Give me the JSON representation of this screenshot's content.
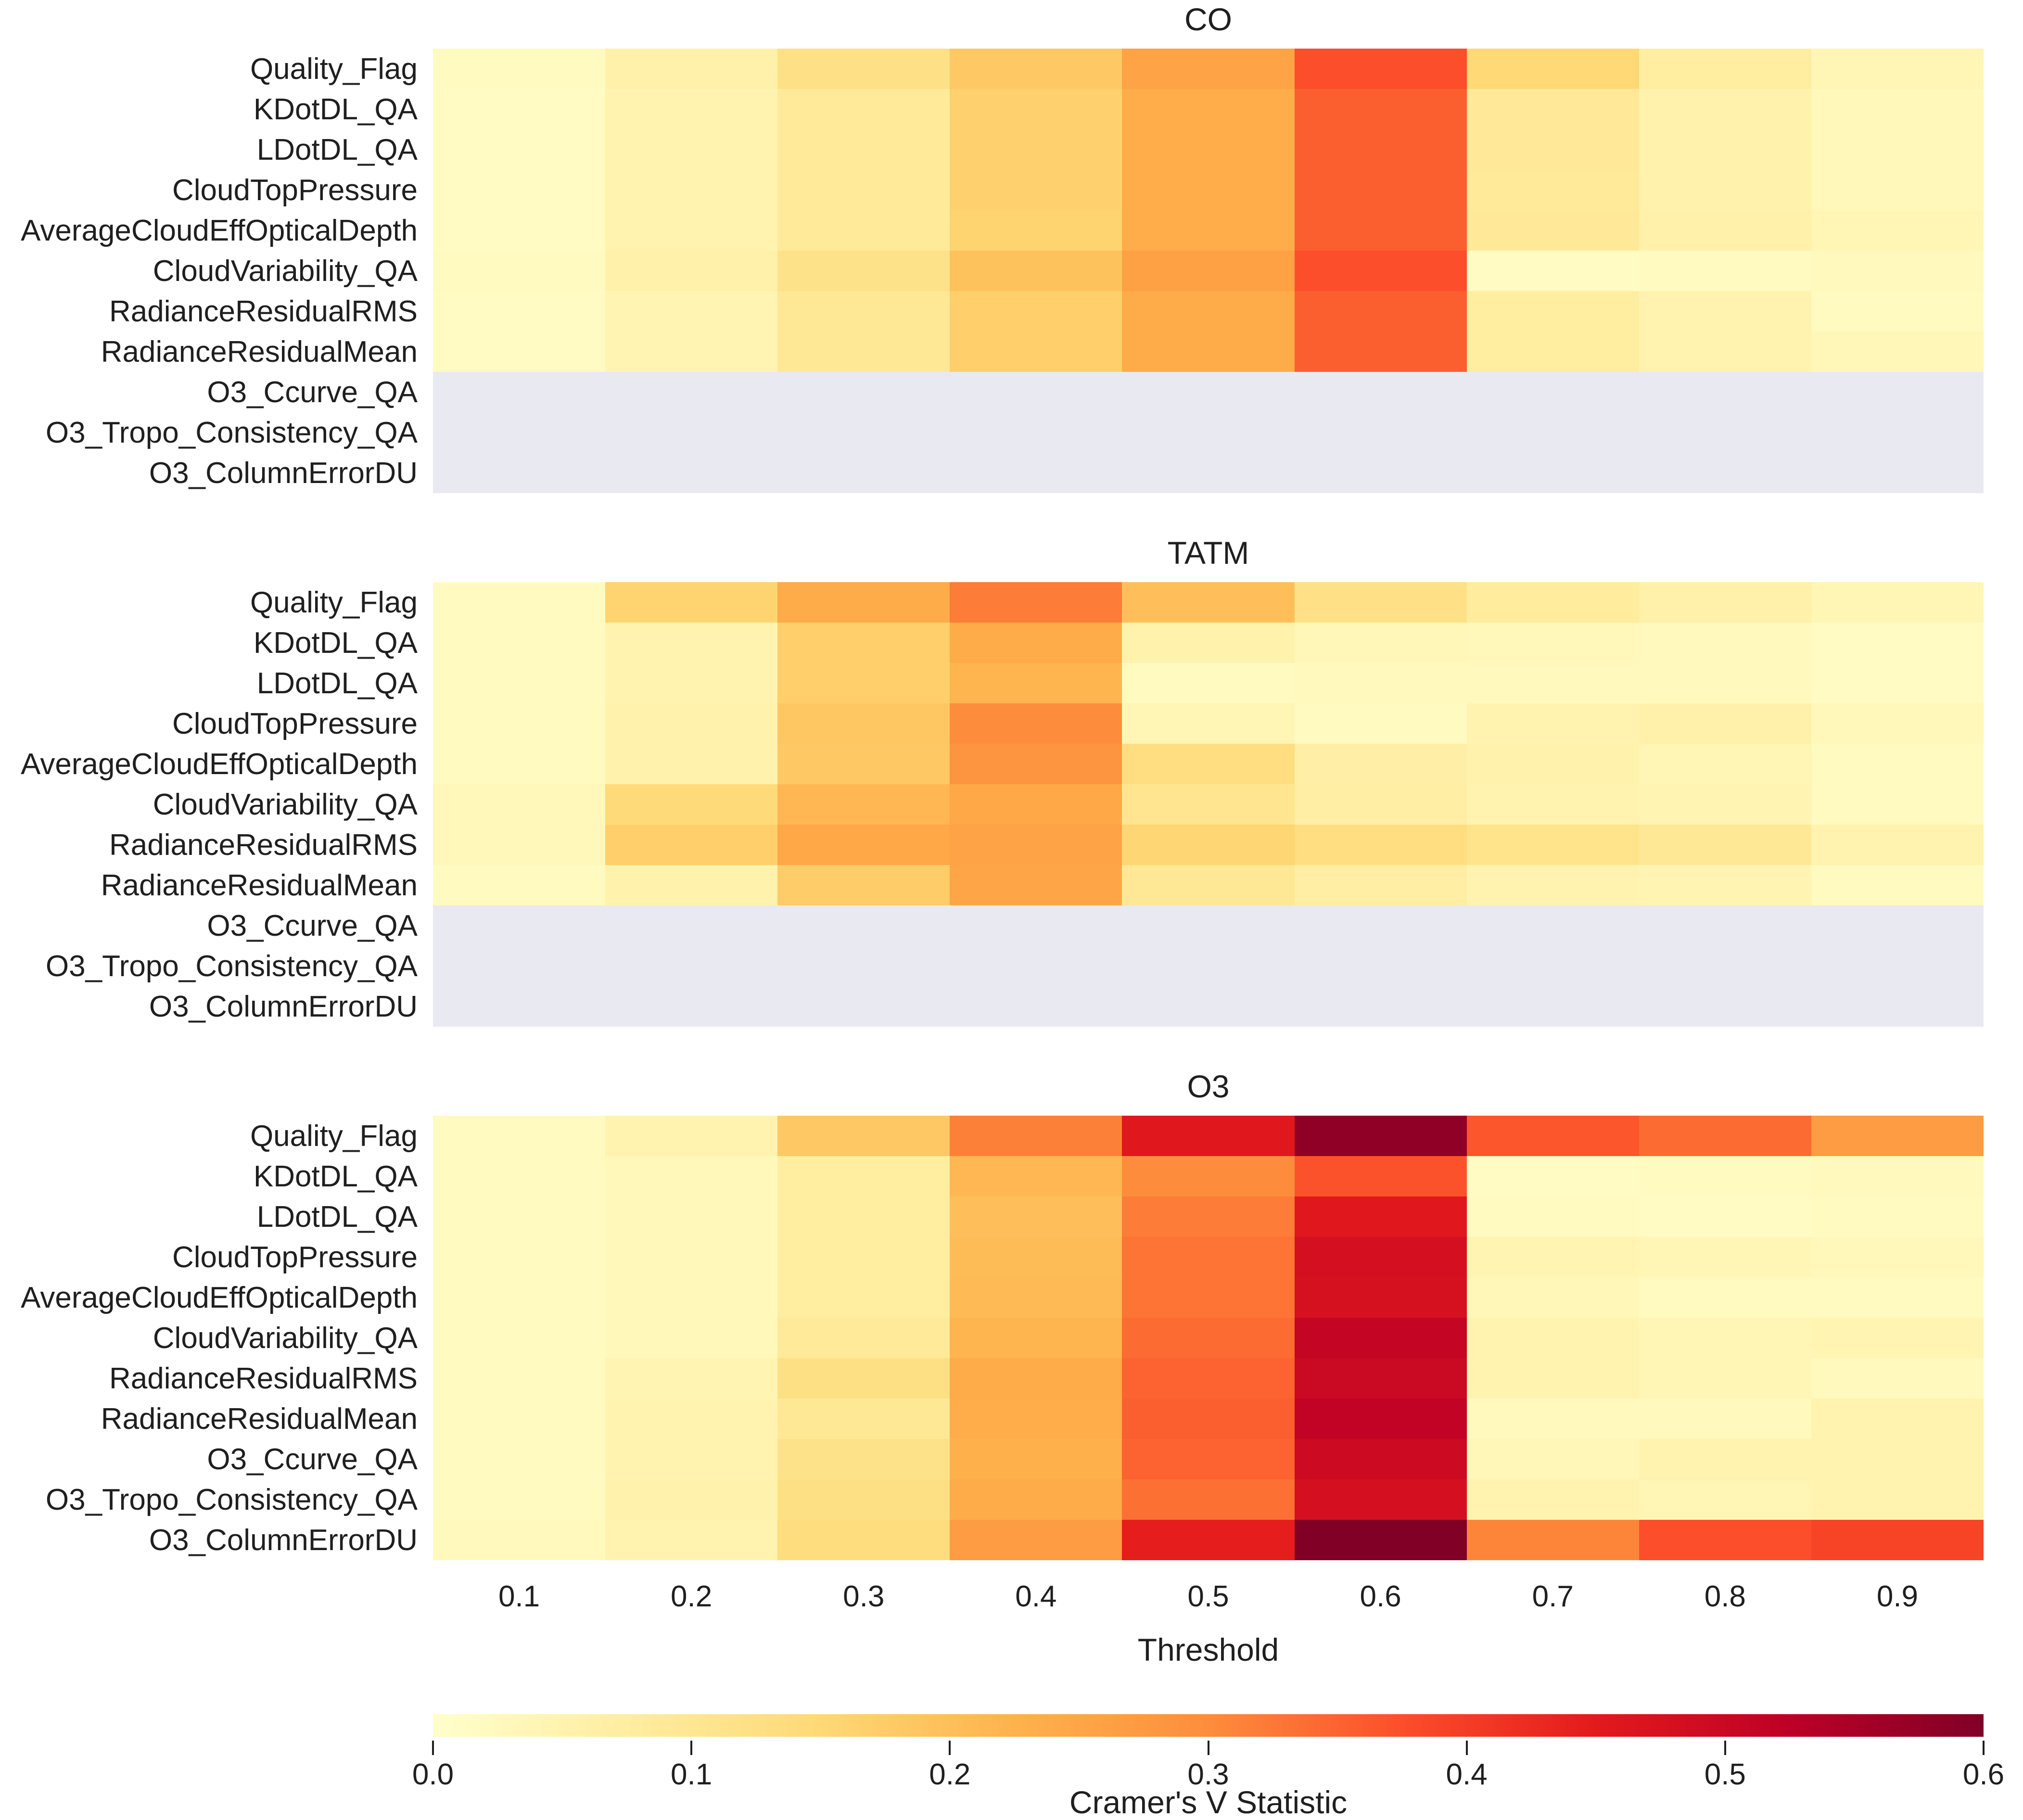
{
  "figure": {
    "background": "#ffffff",
    "text_color": "#1f1f1f",
    "nan_color": "#e9e9f2"
  },
  "x_axis": {
    "label": "Threshold",
    "tick_labels": [
      "0.1",
      "0.2",
      "0.3",
      "0.4",
      "0.5",
      "0.6",
      "0.7",
      "0.8",
      "0.9"
    ]
  },
  "colorbar": {
    "label": "Cramer's V Statistic",
    "min": 0.0,
    "max": 0.6,
    "tick_labels": [
      "0.0",
      "0.1",
      "0.2",
      "0.3",
      "0.4",
      "0.5",
      "0.6"
    ],
    "colormap": "YlOrRd",
    "stops": [
      "#ffffcc",
      "#ffeda0",
      "#fed976",
      "#feb24c",
      "#fd8d3c",
      "#fc4e2a",
      "#e31a1c",
      "#bd0026",
      "#800026"
    ]
  },
  "chart_data": [
    {
      "type": "heatmap",
      "title": "CO",
      "xlabel": "",
      "show_x_tick_labels": false,
      "columns": [
        0.1,
        0.2,
        0.3,
        0.4,
        0.5,
        0.6,
        0.7,
        0.8,
        0.9
      ],
      "rows": [
        "Quality_Flag",
        "KDotDL_QA",
        "LDotDL_QA",
        "CloudTopPressure",
        "AverageCloudEffOpticalDepth",
        "CloudVariability_QA",
        "RadianceResidualRMS",
        "RadianceResidualMean",
        "O3_Ccurve_QA",
        "O3_Tropo_Consistency_QA",
        "O3_ColumnErrorDU"
      ],
      "values": [
        [
          0.02,
          0.06,
          0.12,
          0.18,
          0.255,
          0.375,
          0.15,
          0.075,
          0.04
        ],
        [
          0.015,
          0.05,
          0.085,
          0.165,
          0.235,
          0.355,
          0.09,
          0.055,
          0.03
        ],
        [
          0.015,
          0.05,
          0.085,
          0.165,
          0.235,
          0.355,
          0.09,
          0.055,
          0.03
        ],
        [
          0.015,
          0.05,
          0.085,
          0.165,
          0.235,
          0.355,
          0.085,
          0.055,
          0.03
        ],
        [
          0.015,
          0.05,
          0.085,
          0.16,
          0.235,
          0.355,
          0.09,
          0.06,
          0.04
        ],
        [
          0.02,
          0.06,
          0.115,
          0.195,
          0.26,
          0.375,
          0.015,
          0.02,
          0.025
        ],
        [
          0.015,
          0.045,
          0.095,
          0.17,
          0.24,
          0.355,
          0.075,
          0.05,
          0.02
        ],
        [
          0.015,
          0.045,
          0.095,
          0.17,
          0.24,
          0.355,
          0.075,
          0.05,
          0.035
        ],
        [
          null,
          null,
          null,
          null,
          null,
          null,
          null,
          null,
          null
        ],
        [
          null,
          null,
          null,
          null,
          null,
          null,
          null,
          null,
          null
        ],
        [
          null,
          null,
          null,
          null,
          null,
          null,
          null,
          null,
          null
        ]
      ]
    },
    {
      "type": "heatmap",
      "title": "TATM",
      "xlabel": "",
      "show_x_tick_labels": false,
      "columns": [
        0.1,
        0.2,
        0.3,
        0.4,
        0.5,
        0.6,
        0.7,
        0.8,
        0.9
      ],
      "rows": [
        "Quality_Flag",
        "KDotDL_QA",
        "LDotDL_QA",
        "CloudTopPressure",
        "AverageCloudEffOpticalDepth",
        "CloudVariability_QA",
        "RadianceResidualRMS",
        "RadianceResidualMean",
        "O3_Ccurve_QA",
        "O3_Tropo_Consistency_QA",
        "O3_ColumnErrorDU"
      ],
      "values": [
        [
          0.02,
          0.16,
          0.24,
          0.32,
          0.2,
          0.12,
          0.08,
          0.06,
          0.04
        ],
        [
          0.02,
          0.05,
          0.17,
          0.24,
          0.055,
          0.035,
          0.03,
          0.025,
          0.015
        ],
        [
          0.02,
          0.05,
          0.17,
          0.22,
          0.02,
          0.025,
          0.025,
          0.025,
          0.015
        ],
        [
          0.02,
          0.055,
          0.185,
          0.3,
          0.04,
          0.02,
          0.05,
          0.06,
          0.03
        ],
        [
          0.02,
          0.055,
          0.18,
          0.285,
          0.13,
          0.065,
          0.055,
          0.04,
          0.02
        ],
        [
          0.03,
          0.145,
          0.215,
          0.245,
          0.105,
          0.07,
          0.05,
          0.045,
          0.02
        ],
        [
          0.03,
          0.17,
          0.245,
          0.255,
          0.155,
          0.13,
          0.11,
          0.095,
          0.05
        ],
        [
          0.02,
          0.055,
          0.175,
          0.25,
          0.095,
          0.07,
          0.05,
          0.045,
          0.02
        ],
        [
          null,
          null,
          null,
          null,
          null,
          null,
          null,
          null,
          null
        ],
        [
          null,
          null,
          null,
          null,
          null,
          null,
          null,
          null,
          null
        ],
        [
          null,
          null,
          null,
          null,
          null,
          null,
          null,
          null,
          null
        ]
      ]
    },
    {
      "type": "heatmap",
      "title": "O3",
      "xlabel": "Threshold",
      "show_x_tick_labels": true,
      "columns": [
        0.1,
        0.2,
        0.3,
        0.4,
        0.5,
        0.6,
        0.7,
        0.8,
        0.9
      ],
      "rows": [
        "Quality_Flag",
        "KDotDL_QA",
        "LDotDL_QA",
        "CloudTopPressure",
        "AverageCloudEffOpticalDepth",
        "CloudVariability_QA",
        "RadianceResidualRMS",
        "RadianceResidualMean",
        "O3_Ccurve_QA",
        "O3_Tropo_Consistency_QA",
        "O3_ColumnErrorDU"
      ],
      "values": [
        [
          0.02,
          0.05,
          0.18,
          0.315,
          0.455,
          0.58,
          0.365,
          0.34,
          0.27
        ],
        [
          0.02,
          0.03,
          0.075,
          0.215,
          0.3,
          0.37,
          0.015,
          0.02,
          0.025
        ],
        [
          0.02,
          0.03,
          0.075,
          0.2,
          0.32,
          0.455,
          0.02,
          0.015,
          0.02
        ],
        [
          0.02,
          0.03,
          0.075,
          0.205,
          0.33,
          0.48,
          0.045,
          0.04,
          0.03
        ],
        [
          0.02,
          0.03,
          0.075,
          0.21,
          0.33,
          0.475,
          0.035,
          0.02,
          0.02
        ],
        [
          0.02,
          0.03,
          0.085,
          0.22,
          0.34,
          0.51,
          0.05,
          0.04,
          0.045
        ],
        [
          0.02,
          0.045,
          0.125,
          0.24,
          0.35,
          0.5,
          0.05,
          0.04,
          0.025
        ],
        [
          0.02,
          0.05,
          0.095,
          0.235,
          0.355,
          0.515,
          0.025,
          0.025,
          0.05
        ],
        [
          0.02,
          0.05,
          0.115,
          0.23,
          0.35,
          0.495,
          0.035,
          0.05,
          0.05
        ],
        [
          0.02,
          0.055,
          0.125,
          0.24,
          0.335,
          0.48,
          0.05,
          0.04,
          0.05
        ],
        [
          0.025,
          0.05,
          0.135,
          0.27,
          0.445,
          0.6,
          0.31,
          0.375,
          0.39
        ]
      ]
    }
  ]
}
